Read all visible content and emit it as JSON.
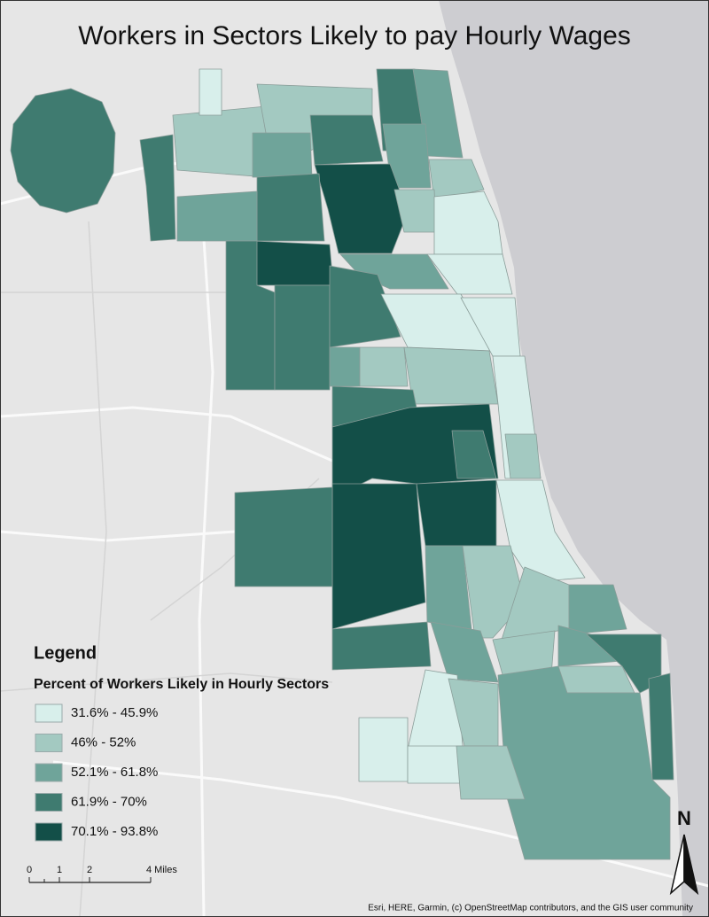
{
  "title": "Workers in Sectors Likely to pay Hourly Wages",
  "legend": {
    "heading": "Legend",
    "subtitle": "Percent of Workers Likely in Hourly Sectors",
    "classes": [
      {
        "label": "31.6% - 45.9%",
        "color": "#d8efeb"
      },
      {
        "label": "46% - 52%",
        "color": "#a3c9c1"
      },
      {
        "label": "52.1% - 61.8%",
        "color": "#6fa49a"
      },
      {
        "label": "61.9% - 70%",
        "color": "#3f7b70"
      },
      {
        "label": "70.1% - 93.8%",
        "color": "#134f48"
      }
    ]
  },
  "scale_bar": {
    "labels": [
      "0",
      "1",
      "2",
      "4 Miles"
    ]
  },
  "north_arrow": {
    "label": "N"
  },
  "attribution": "Esri, HERE, Garmin, (c) OpenStreetMap contributors, and the GIS user community"
}
